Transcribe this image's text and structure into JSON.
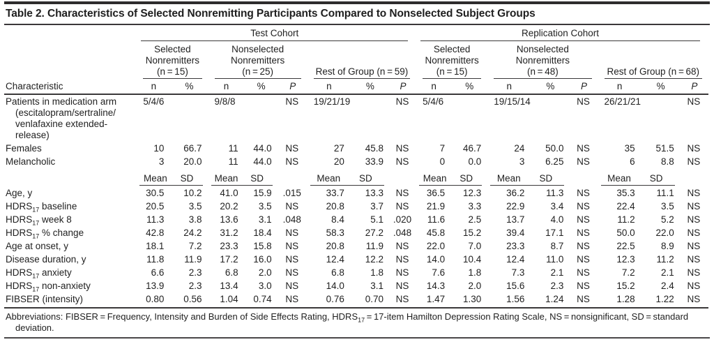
{
  "title": "Table 2. Characteristics of Selected Nonremitting Participants Compared to Nonselected Subject Groups",
  "header": {
    "characteristic": "Characteristic",
    "cohorts": [
      {
        "label": "Test Cohort",
        "groups": [
          {
            "lines": [
              "Selected",
              "Nonremitters",
              "(n = 15)"
            ],
            "subcols": [
              "n",
              "%"
            ]
          },
          {
            "lines": [
              "Nonselected",
              "Nonremitters",
              "(n = 25)"
            ],
            "subcols": [
              "n",
              "%",
              "P"
            ]
          },
          {
            "lines": [
              "Rest of Group (n = 59)"
            ],
            "subcols": [
              "n",
              "%",
              "P"
            ]
          }
        ]
      },
      {
        "label": "Replication Cohort",
        "groups": [
          {
            "lines": [
              "Selected",
              "Nonremitters",
              "(n = 15)"
            ],
            "subcols": [
              "n",
              "%"
            ]
          },
          {
            "lines": [
              "Nonselected",
              "Nonremitters",
              "(n = 48)"
            ],
            "subcols": [
              "n",
              "%",
              "P"
            ]
          },
          {
            "lines": [
              "Rest of Group (n = 68)"
            ],
            "subcols": [
              "n",
              "%",
              "P"
            ]
          }
        ]
      }
    ]
  },
  "measure": {
    "mean": "Mean",
    "sd": "SD"
  },
  "rows": [
    {
      "label": "Patients in medication arm (escitalopram/sertraline/ venlafaxine extended-release)",
      "cells": [
        {
          "v": "5/4/6",
          "span": 2
        },
        {
          "v": "9/8/8",
          "span": 2
        },
        "NS",
        {
          "v": "19/21/19",
          "span": 2
        },
        "NS",
        {
          "v": "5/4/6",
          "span": 2
        },
        {
          "v": "19/15/14",
          "span": 2
        },
        "NS",
        {
          "v": "26/21/21",
          "span": 2
        },
        "NS"
      ]
    },
    {
      "label": "Females",
      "cells": [
        "10",
        "66.7",
        "11",
        "44.0",
        "NS",
        "27",
        "45.8",
        "NS",
        "7",
        "46.7",
        "24",
        "50.0",
        "NS",
        "35",
        "51.5",
        "NS"
      ]
    },
    {
      "label": "Melancholic",
      "cells": [
        "3",
        "20.0",
        "11",
        "44.0",
        "NS",
        "20",
        "33.9",
        "NS",
        "0",
        "0.0",
        "3",
        "6.25",
        "NS",
        "6",
        "8.8",
        "NS"
      ]
    },
    {
      "type": "measure"
    },
    {
      "label": "Age, y",
      "cells": [
        "30.5",
        "10.2",
        "41.0",
        "15.9",
        ".015",
        "33.7",
        "13.3",
        "NS",
        "36.5",
        "12.3",
        "36.2",
        "11.3",
        "NS",
        "35.3",
        "11.1",
        "NS"
      ]
    },
    {
      "label_parts": [
        [
          "HDRS",
          false
        ],
        [
          "17",
          true
        ],
        [
          " baseline",
          false
        ]
      ],
      "cells": [
        "20.5",
        "3.5",
        "20.2",
        "3.5",
        "NS",
        "20.8",
        "3.7",
        "NS",
        "21.9",
        "3.3",
        "22.9",
        "3.4",
        "NS",
        "22.4",
        "3.5",
        "NS"
      ]
    },
    {
      "label_parts": [
        [
          "HDRS",
          false
        ],
        [
          "17",
          true
        ],
        [
          " week 8",
          false
        ]
      ],
      "cells": [
        "11.3",
        "3.8",
        "13.6",
        "3.1",
        ".048",
        "8.4",
        "5.1",
        ".020",
        "11.6",
        "2.5",
        "13.7",
        "4.0",
        "NS",
        "11.2",
        "5.2",
        "NS"
      ]
    },
    {
      "label_parts": [
        [
          "HDRS",
          false
        ],
        [
          "17",
          true
        ],
        [
          " % change",
          false
        ]
      ],
      "cells": [
        "42.8",
        "24.2",
        "31.2",
        "18.4",
        "NS",
        "58.3",
        "27.2",
        ".048",
        "45.8",
        "15.2",
        "39.4",
        "17.1",
        "NS",
        "50.0",
        "22.0",
        "NS"
      ]
    },
    {
      "label": "Age at onset, y",
      "cells": [
        "18.1",
        "7.2",
        "23.3",
        "15.8",
        "NS",
        "20.8",
        "11.9",
        "NS",
        "22.0",
        "7.0",
        "23.3",
        "8.7",
        "NS",
        "22.5",
        "8.9",
        "NS"
      ]
    },
    {
      "label": "Disease duration, y",
      "cells": [
        "11.8",
        "11.9",
        "17.2",
        "16.0",
        "NS",
        "12.4",
        "12.2",
        "NS",
        "14.0",
        "10.4",
        "12.4",
        "11.0",
        "NS",
        "12.3",
        "11.2",
        "NS"
      ]
    },
    {
      "label_parts": [
        [
          "HDRS",
          false
        ],
        [
          "17",
          true
        ],
        [
          " anxiety",
          false
        ]
      ],
      "cells": [
        "6.6",
        "2.3",
        "6.8",
        "2.0",
        "NS",
        "6.8",
        "1.8",
        "NS",
        "7.6",
        "1.8",
        "7.3",
        "2.1",
        "NS",
        "7.2",
        "2.1",
        "NS"
      ]
    },
    {
      "label_parts": [
        [
          "HDRS",
          false
        ],
        [
          "17",
          true
        ],
        [
          " non-anxiety",
          false
        ]
      ],
      "cells": [
        "13.9",
        "2.3",
        "13.4",
        "3.0",
        "NS",
        "14.0",
        "3.1",
        "NS",
        "14.3",
        "2.0",
        "15.6",
        "2.3",
        "NS",
        "15.2",
        "2.4",
        "NS"
      ]
    },
    {
      "label": "FIBSER (intensity)",
      "cells": [
        "0.80",
        "0.56",
        "1.04",
        "0.74",
        "NS",
        "0.76",
        "0.70",
        "NS",
        "1.47",
        "1.30",
        "1.56",
        "1.24",
        "NS",
        "1.28",
        "1.22",
        "NS"
      ]
    }
  ],
  "footnote_parts": [
    [
      "Abbreviations: FIBSER = Frequency, Intensity and Burden of Side Effects Rating, HDRS",
      false
    ],
    [
      "17",
      true
    ],
    [
      " = 17-item Hamilton Depression Rating Scale, NS = nonsignificant, SD = standard deviation.",
      false
    ]
  ],
  "colors": {
    "text": "#1f1f1f",
    "rule": "#3a3839",
    "background": "#ffffff"
  }
}
